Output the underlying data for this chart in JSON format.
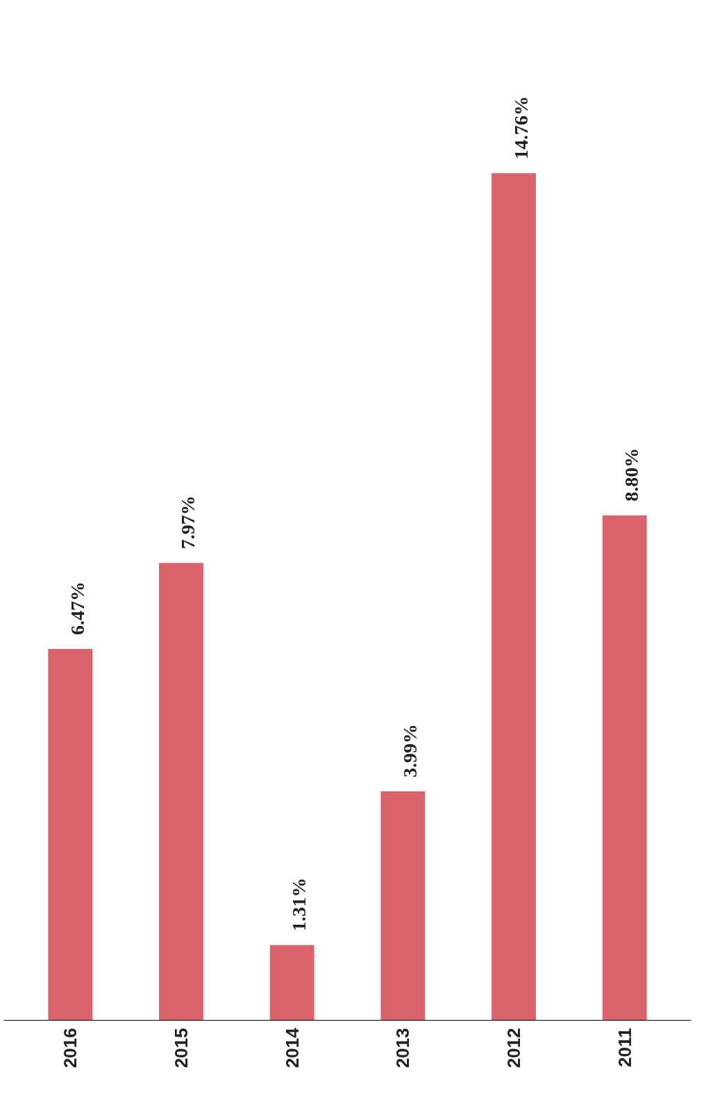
{
  "chart_data": {
    "type": "bar",
    "categories": [
      "2016",
      "2015",
      "2014",
      "2013",
      "2012",
      "2011"
    ],
    "values": [
      6.47,
      7.97,
      1.31,
      3.99,
      14.76,
      8.8
    ],
    "value_labels": [
      "6.47%",
      "7.97%",
      "1.31%",
      "3.99%",
      "14.76%",
      "8.80%"
    ],
    "color": "#d9636b"
  }
}
